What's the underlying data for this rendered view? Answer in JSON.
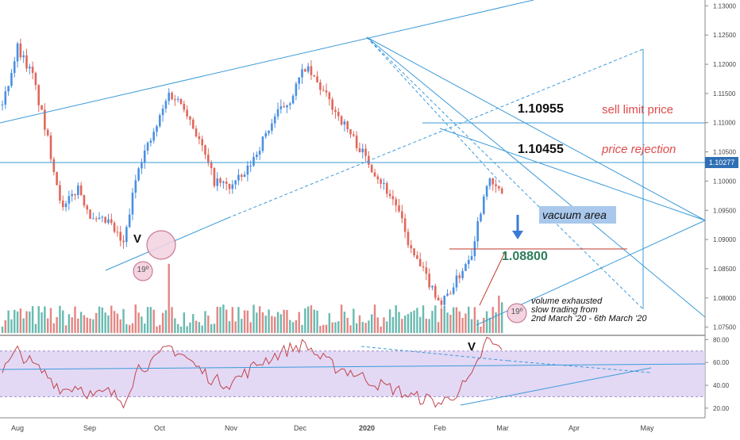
{
  "chart_data": [
    {
      "type": "candlestick",
      "series": [
        {
          "name": "",
          "style": "candles",
          "up_color": "#4a90e2",
          "down_color": "#e0675b",
          "values_close": [
            1.113,
            1.123,
            1.118,
            1.107,
            1.095,
            1.099,
            1.093,
            1.093,
            1.089,
            1.103,
            1.108,
            1.115,
            1.113,
            1.107,
            1.1,
            1.099,
            1.101,
            1.106,
            1.111,
            1.114,
            1.1195,
            1.116,
            1.112,
            1.108,
            1.104,
            1.1,
            1.096,
            1.088,
            1.0835,
            1.079,
            1.083,
            1.088,
            1.1,
            1.098
          ]
        },
        {
          "name": "",
          "style": "volume_bars"
        }
      ],
      "x_tick_labels": [
        "Aug",
        "Sep",
        "Oct",
        "Nov",
        "Dec",
        "2020",
        "Feb",
        "Mar",
        "Apr",
        "May"
      ],
      "y_tick_labels": [
        "1.13000",
        "1.12500",
        "1.12000",
        "1.11500",
        "1.11000",
        "1.10500",
        "1.10000",
        "1.09500",
        "1.09000",
        "1.08500",
        "1.08000",
        "1.07500"
      ],
      "ylim": [
        1.074,
        1.131
      ],
      "current_price": "1.10277",
      "annotations": {
        "level_high": "1.10955",
        "level_high_note": "sell limit price",
        "level_mid": "1.10455",
        "level_mid_note": "price rejection",
        "level_low": "1.08800",
        "vacuum": "vacuum area",
        "v_marker": "V",
        "angle_marker": "19º",
        "volume_note": [
          "volume exhausted",
          "slow trading from",
          "2nd March '20 - 6th March '20"
        ]
      },
      "colors": {
        "trendline": "#3b9ad9",
        "label_red": "#e04b4b",
        "label_green": "#2e7d5b",
        "arrow": "#3a7bd5",
        "vacuum_box": "#9ec3ea",
        "circle": "#c46a8a",
        "circle_fill": "#f3d4e0"
      }
    },
    {
      "type": "line",
      "series": [
        {
          "name": "",
          "color": "#c2444c",
          "values": [
            52,
            70,
            58,
            48,
            36,
            40,
            30,
            34,
            26,
            56,
            60,
            74,
            66,
            54,
            44,
            42,
            50,
            60,
            66,
            72,
            76,
            64,
            56,
            52,
            46,
            40,
            36,
            30,
            28,
            24,
            34,
            46,
            80,
            70
          ]
        }
      ],
      "ylim": [
        15,
        83
      ],
      "y_tick_labels": [
        "80.00",
        "60.00",
        "40.00",
        "20.00"
      ],
      "band": [
        30,
        70
      ],
      "band_color": "#d9ccf2",
      "annotations": {
        "v_marker": "V"
      }
    }
  ]
}
